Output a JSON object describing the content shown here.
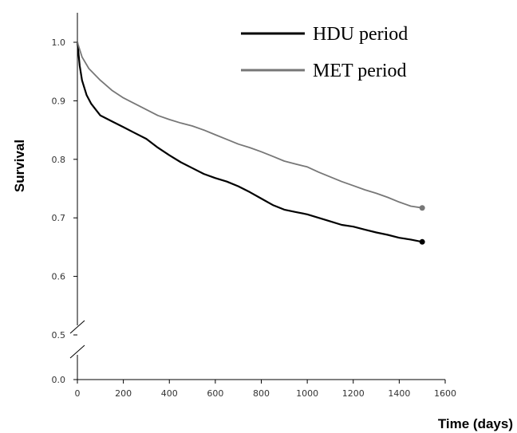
{
  "chart_data": {
    "type": "line",
    "title": "",
    "xlabel": "Time (days)",
    "ylabel": "Survival",
    "xlim": [
      0,
      1600
    ],
    "x_ticks": [
      "0",
      "200",
      "400",
      "600",
      "800",
      "1000",
      "1200",
      "1400",
      "1600"
    ],
    "y_ticks": [
      "0.0",
      "0.5",
      "0.6",
      "0.7",
      "0.8",
      "0.9",
      "1.0"
    ],
    "y_axis_break": "between 0.0 and 0.5",
    "ylim_upper_segment": [
      0.5,
      1.0
    ],
    "grid": false,
    "legend_position": "top-right",
    "series": [
      {
        "name": "HDU period",
        "color": "#000000",
        "x": [
          0,
          10,
          20,
          40,
          60,
          80,
          100,
          150,
          200,
          250,
          300,
          350,
          400,
          450,
          500,
          550,
          600,
          650,
          700,
          750,
          800,
          850,
          900,
          950,
          1000,
          1050,
          1100,
          1150,
          1200,
          1250,
          1300,
          1350,
          1400,
          1450,
          1500
        ],
        "y": [
          1.0,
          0.96,
          0.935,
          0.91,
          0.895,
          0.885,
          0.875,
          0.865,
          0.855,
          0.845,
          0.835,
          0.82,
          0.807,
          0.795,
          0.785,
          0.775,
          0.768,
          0.762,
          0.754,
          0.744,
          0.733,
          0.722,
          0.714,
          0.71,
          0.706,
          0.7,
          0.694,
          0.688,
          0.685,
          0.68,
          0.675,
          0.671,
          0.666,
          0.663,
          0.659
        ]
      },
      {
        "name": "MET period",
        "color": "#777777",
        "x": [
          0,
          20,
          50,
          100,
          150,
          200,
          250,
          300,
          350,
          400,
          450,
          500,
          550,
          600,
          650,
          700,
          750,
          800,
          850,
          900,
          950,
          1000,
          1050,
          1100,
          1150,
          1200,
          1250,
          1300,
          1350,
          1400,
          1450,
          1500
        ],
        "y": [
          1.0,
          0.975,
          0.955,
          0.935,
          0.918,
          0.905,
          0.895,
          0.885,
          0.875,
          0.868,
          0.862,
          0.857,
          0.85,
          0.842,
          0.834,
          0.826,
          0.82,
          0.813,
          0.805,
          0.797,
          0.792,
          0.787,
          0.778,
          0.77,
          0.762,
          0.755,
          0.748,
          0.742,
          0.735,
          0.727,
          0.72,
          0.717
        ]
      }
    ]
  }
}
